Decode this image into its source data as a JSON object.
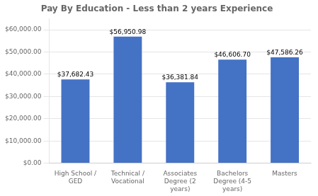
{
  "chart_data": {
    "type": "bar",
    "title": "Pay By Education - Less than 2 years Experience",
    "categories": [
      "High School /\nGED",
      "Technical /\nVocational",
      "Associates\nDegree (2\nyears)",
      "Bachelors\nDegree (4-5\nyears)",
      "Masters"
    ],
    "values": [
      37682.43,
      56950.98,
      36381.84,
      46606.7,
      47586.26
    ],
    "value_labels": [
      "$37,682.43",
      "$56,950.98",
      "$36,381.84",
      "$46,606.70",
      "$47,586.26"
    ],
    "data_labels": true,
    "color": "#4472C4",
    "ylim": [
      0,
      65000
    ],
    "yticks": [
      {
        "value": 0,
        "label": "$0.00"
      },
      {
        "value": 10000,
        "label": "$10,000.00"
      },
      {
        "value": 20000,
        "label": "$20,000.00"
      },
      {
        "value": 30000,
        "label": "$30,000.00"
      },
      {
        "value": 40000,
        "label": "$40,000.00"
      },
      {
        "value": 50000,
        "label": "$50,000.00"
      },
      {
        "value": 60000,
        "label": "$60,000.00"
      }
    ],
    "grid": true
  }
}
